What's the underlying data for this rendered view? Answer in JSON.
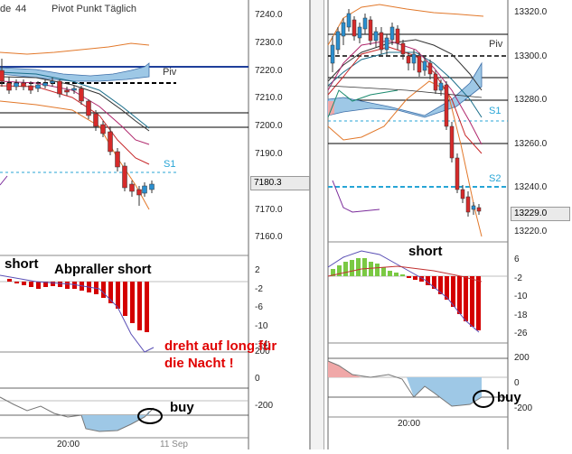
{
  "header": {
    "period_text": "de",
    "period_value": "44",
    "title": "Pivot Punkt  Täglich"
  },
  "left_panel": {
    "price_axis": [
      "7240.0",
      "7230.0",
      "7220.0",
      "7210.0",
      "7200.0",
      "7190.0",
      "7180.0",
      "7170.0",
      "7160.0"
    ],
    "current_price": "7180.3",
    "labels": {
      "piv": "Piv",
      "s1": "S1"
    },
    "annotations": {
      "short": "short",
      "abpraller": "Abpraller short",
      "dreht": "dreht auf long für die Nacht !",
      "buy": "buy"
    },
    "macd_axis": [
      "2",
      "-2",
      "-6",
      "-10",
      "-14"
    ],
    "osc_axis": [
      "200",
      "0",
      "-200"
    ],
    "time_labels": [
      "20:00",
      "11 Sep"
    ]
  },
  "right_panel": {
    "price_axis": [
      "13320.0",
      "13300.0",
      "13280.0",
      "13260.0",
      "13240.0",
      "13220.0"
    ],
    "current_price": "13229.0",
    "labels": {
      "piv": "Piv",
      "s1": "S1",
      "s2": "S2"
    },
    "annotations": {
      "short": "short",
      "buy": "buy"
    },
    "macd_axis": [
      "6",
      "-2",
      "-10",
      "-18",
      "-26"
    ],
    "osc_axis": [
      "200",
      "0",
      "-200"
    ],
    "time_labels": [
      "20:00"
    ]
  },
  "colors": {
    "bull": "#2a8fd0",
    "bear": "#d62a2a",
    "green_hist": "#7ac943",
    "red_hist": "#d40000",
    "cloud": "#9ec8e6",
    "pivot_line": "#1f3f9a",
    "dashed_blue": "#27a5d6"
  }
}
